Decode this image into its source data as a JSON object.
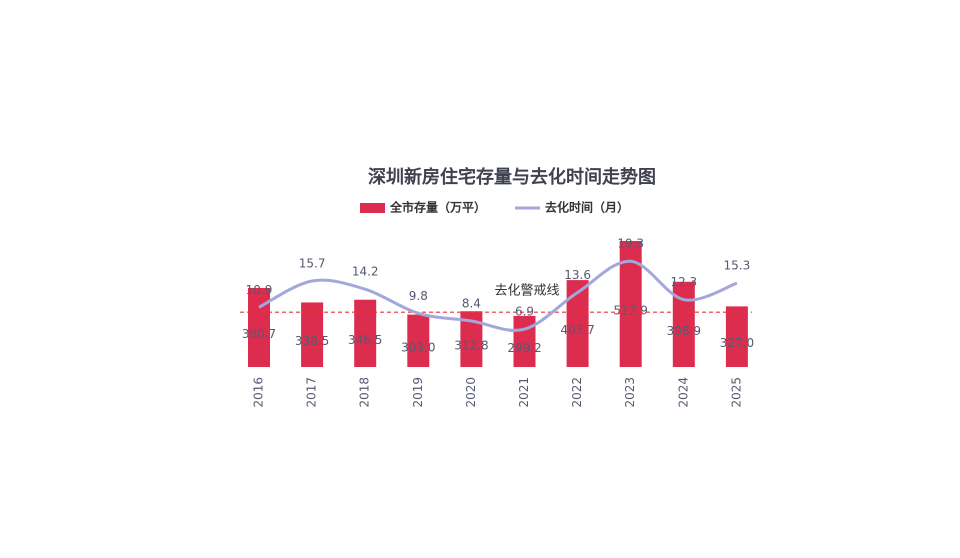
{
  "chart_data": {
    "type": "bar_line",
    "title": "深圳新房住宅存量与去化时间走势图",
    "categories": [
      "2016",
      "2017",
      "2018",
      "2019",
      "2020",
      "2021",
      "2022",
      "2023",
      "2024",
      "2025"
    ],
    "series": [
      {
        "name": "全市存量（万平）",
        "type": "bar",
        "color": "#dc2d4f",
        "axis": "y",
        "values": [
          380.7,
          338.5,
          346.5,
          303.0,
          312.8,
          299.2,
          403.7,
          517.9,
          398.9,
          327.0
        ],
        "value_labels": [
          "380.7",
          "338.5",
          "346.5",
          "303.0",
          "312.8",
          "299.2",
          "403.7",
          "517.9",
          "398.9",
          "327.0"
        ]
      },
      {
        "name": "去化时间（月）",
        "type": "line",
        "color": "#a3a7dc",
        "axis": "y2",
        "values": [
          10.9,
          15.7,
          14.2,
          9.8,
          8.4,
          6.9,
          13.6,
          19.3,
          12.3,
          15.3
        ]
      }
    ],
    "threshold": {
      "value": 10,
      "label": "去化警戒线",
      "color": "#e8353a",
      "axis": "y2"
    },
    "ylim": [
      150,
      550
    ],
    "y2lim": [
      0,
      25
    ]
  }
}
